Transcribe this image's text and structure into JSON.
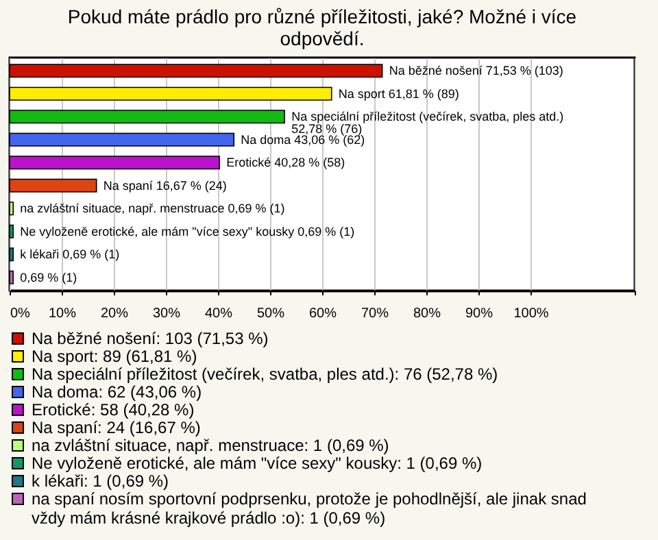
{
  "chart_data": {
    "type": "bar",
    "orientation": "horizontal",
    "title": "Pokud máte prádlo pro různé příležitosti, jaké? Možné i více odpovědí.",
    "categories": [
      null,
      null,
      null,
      null,
      null,
      null,
      null,
      null,
      null,
      null
    ],
    "series": [
      {
        "name": "Na běžné nošení: 103 (71,53 %)",
        "color": "#cc1100",
        "values": [
          71.53,
          null,
          null,
          null,
          null,
          null,
          null,
          null,
          null,
          null
        ],
        "value_labels": [
          "Na běžné nošení 71,53 % (103)",
          null,
          null,
          null,
          null,
          null,
          null,
          null,
          null,
          null
        ]
      },
      {
        "name": "Na sport: 89 (61,81 %)",
        "color": "#ffee00",
        "values": [
          null,
          61.81,
          null,
          null,
          null,
          null,
          null,
          null,
          null,
          null
        ],
        "value_labels": [
          null,
          "Na sport 61,81 % (89)",
          null,
          null,
          null,
          null,
          null,
          null,
          null,
          null
        ]
      },
      {
        "name": "Na speciální příležitost (večírek, svatba, ples atd.): 76 (52,78 %)",
        "color": "#11bb11",
        "values": [
          null,
          null,
          52.78,
          null,
          null,
          null,
          null,
          null,
          null,
          null
        ],
        "value_labels": [
          null,
          null,
          "Na speciální příležitost (večírek, svatba, ples atd.) 52,78 % (76)",
          null,
          null,
          null,
          null,
          null,
          null,
          null
        ]
      },
      {
        "name": "Na doma: 62 (43,06 %)",
        "color": "#4466ee",
        "values": [
          null,
          null,
          null,
          43.06,
          null,
          null,
          null,
          null,
          null,
          null
        ],
        "value_labels": [
          null,
          null,
          null,
          "Na doma 43,06 % (62)",
          null,
          null,
          null,
          null,
          null,
          null
        ]
      },
      {
        "name": "Erotické: 58 (40,28 %)",
        "color": "#bb11cc",
        "values": [
          null,
          null,
          null,
          null,
          40.28,
          null,
          null,
          null,
          null,
          null
        ],
        "value_labels": [
          null,
          null,
          null,
          null,
          "Erotické 40,28 % (58)",
          null,
          null,
          null,
          null,
          null
        ]
      },
      {
        "name": "Na spaní: 24 (16,67 %)",
        "color": "#dd4411",
        "values": [
          null,
          null,
          null,
          null,
          null,
          16.67,
          null,
          null,
          null,
          null
        ],
        "value_labels": [
          null,
          null,
          null,
          null,
          null,
          "Na spaní 16,67 % (24)",
          null,
          null,
          null,
          null
        ]
      },
      {
        "name": "na zvláštní situace, např. menstruace: 1 (0,69 %)",
        "color": "#bbff77",
        "values": [
          null,
          null,
          null,
          null,
          null,
          null,
          0.69,
          null,
          null,
          null
        ],
        "value_labels": [
          null,
          null,
          null,
          null,
          null,
          null,
          "na zvláštní situace, např. menstruace 0,69 % (1)",
          null,
          null,
          null
        ]
      },
      {
        "name": "Ne vyloženě erotické, ale mám \"více sexy\" kousky: 1 (0,69 %)",
        "color": "#119966",
        "values": [
          null,
          null,
          null,
          null,
          null,
          null,
          null,
          0.69,
          null,
          null
        ],
        "value_labels": [
          null,
          null,
          null,
          null,
          null,
          null,
          null,
          "Ne vyloženě erotické, ale mám \"více sexy\" kousky 0,69 % (1)",
          null,
          null
        ]
      },
      {
        "name": "k lékaři: 1 (0,69 %)",
        "color": "#227788",
        "values": [
          null,
          null,
          null,
          null,
          null,
          null,
          null,
          null,
          0.69,
          null
        ],
        "value_labels": [
          null,
          null,
          null,
          null,
          null,
          null,
          null,
          null,
          "k lékaři 0,69 % (1)",
          null
        ]
      },
      {
        "name": "na spaní nosím sportovní podprsenku, protože je pohodlnější, ale jinak snad vždy mám krásné krajkové prádlo :o): 1 (0,69 %)",
        "color": "#bb66bb",
        "values": [
          null,
          null,
          null,
          null,
          null,
          null,
          null,
          null,
          null,
          0.69
        ],
        "value_labels": [
          null,
          null,
          null,
          null,
          null,
          null,
          null,
          null,
          null,
          "0,69 % (1)"
        ]
      }
    ],
    "xlim": [
      0,
      120
    ],
    "xticks": [
      {
        "value": 0,
        "label": "0%"
      },
      {
        "value": 10,
        "label": "10%"
      },
      {
        "value": 20,
        "label": "20%"
      },
      {
        "value": 30,
        "label": "30%"
      },
      {
        "value": 40,
        "label": "40%"
      },
      {
        "value": 50,
        "label": "50%"
      },
      {
        "value": 60,
        "label": "60%"
      },
      {
        "value": 70,
        "label": "70%"
      },
      {
        "value": 80,
        "label": "80%"
      },
      {
        "value": 90,
        "label": "90%"
      },
      {
        "value": 100,
        "label": "100%"
      },
      {
        "value": 120,
        "label": null
      }
    ],
    "grid": "x",
    "legend": "bottom",
    "tick_labels": "x"
  }
}
